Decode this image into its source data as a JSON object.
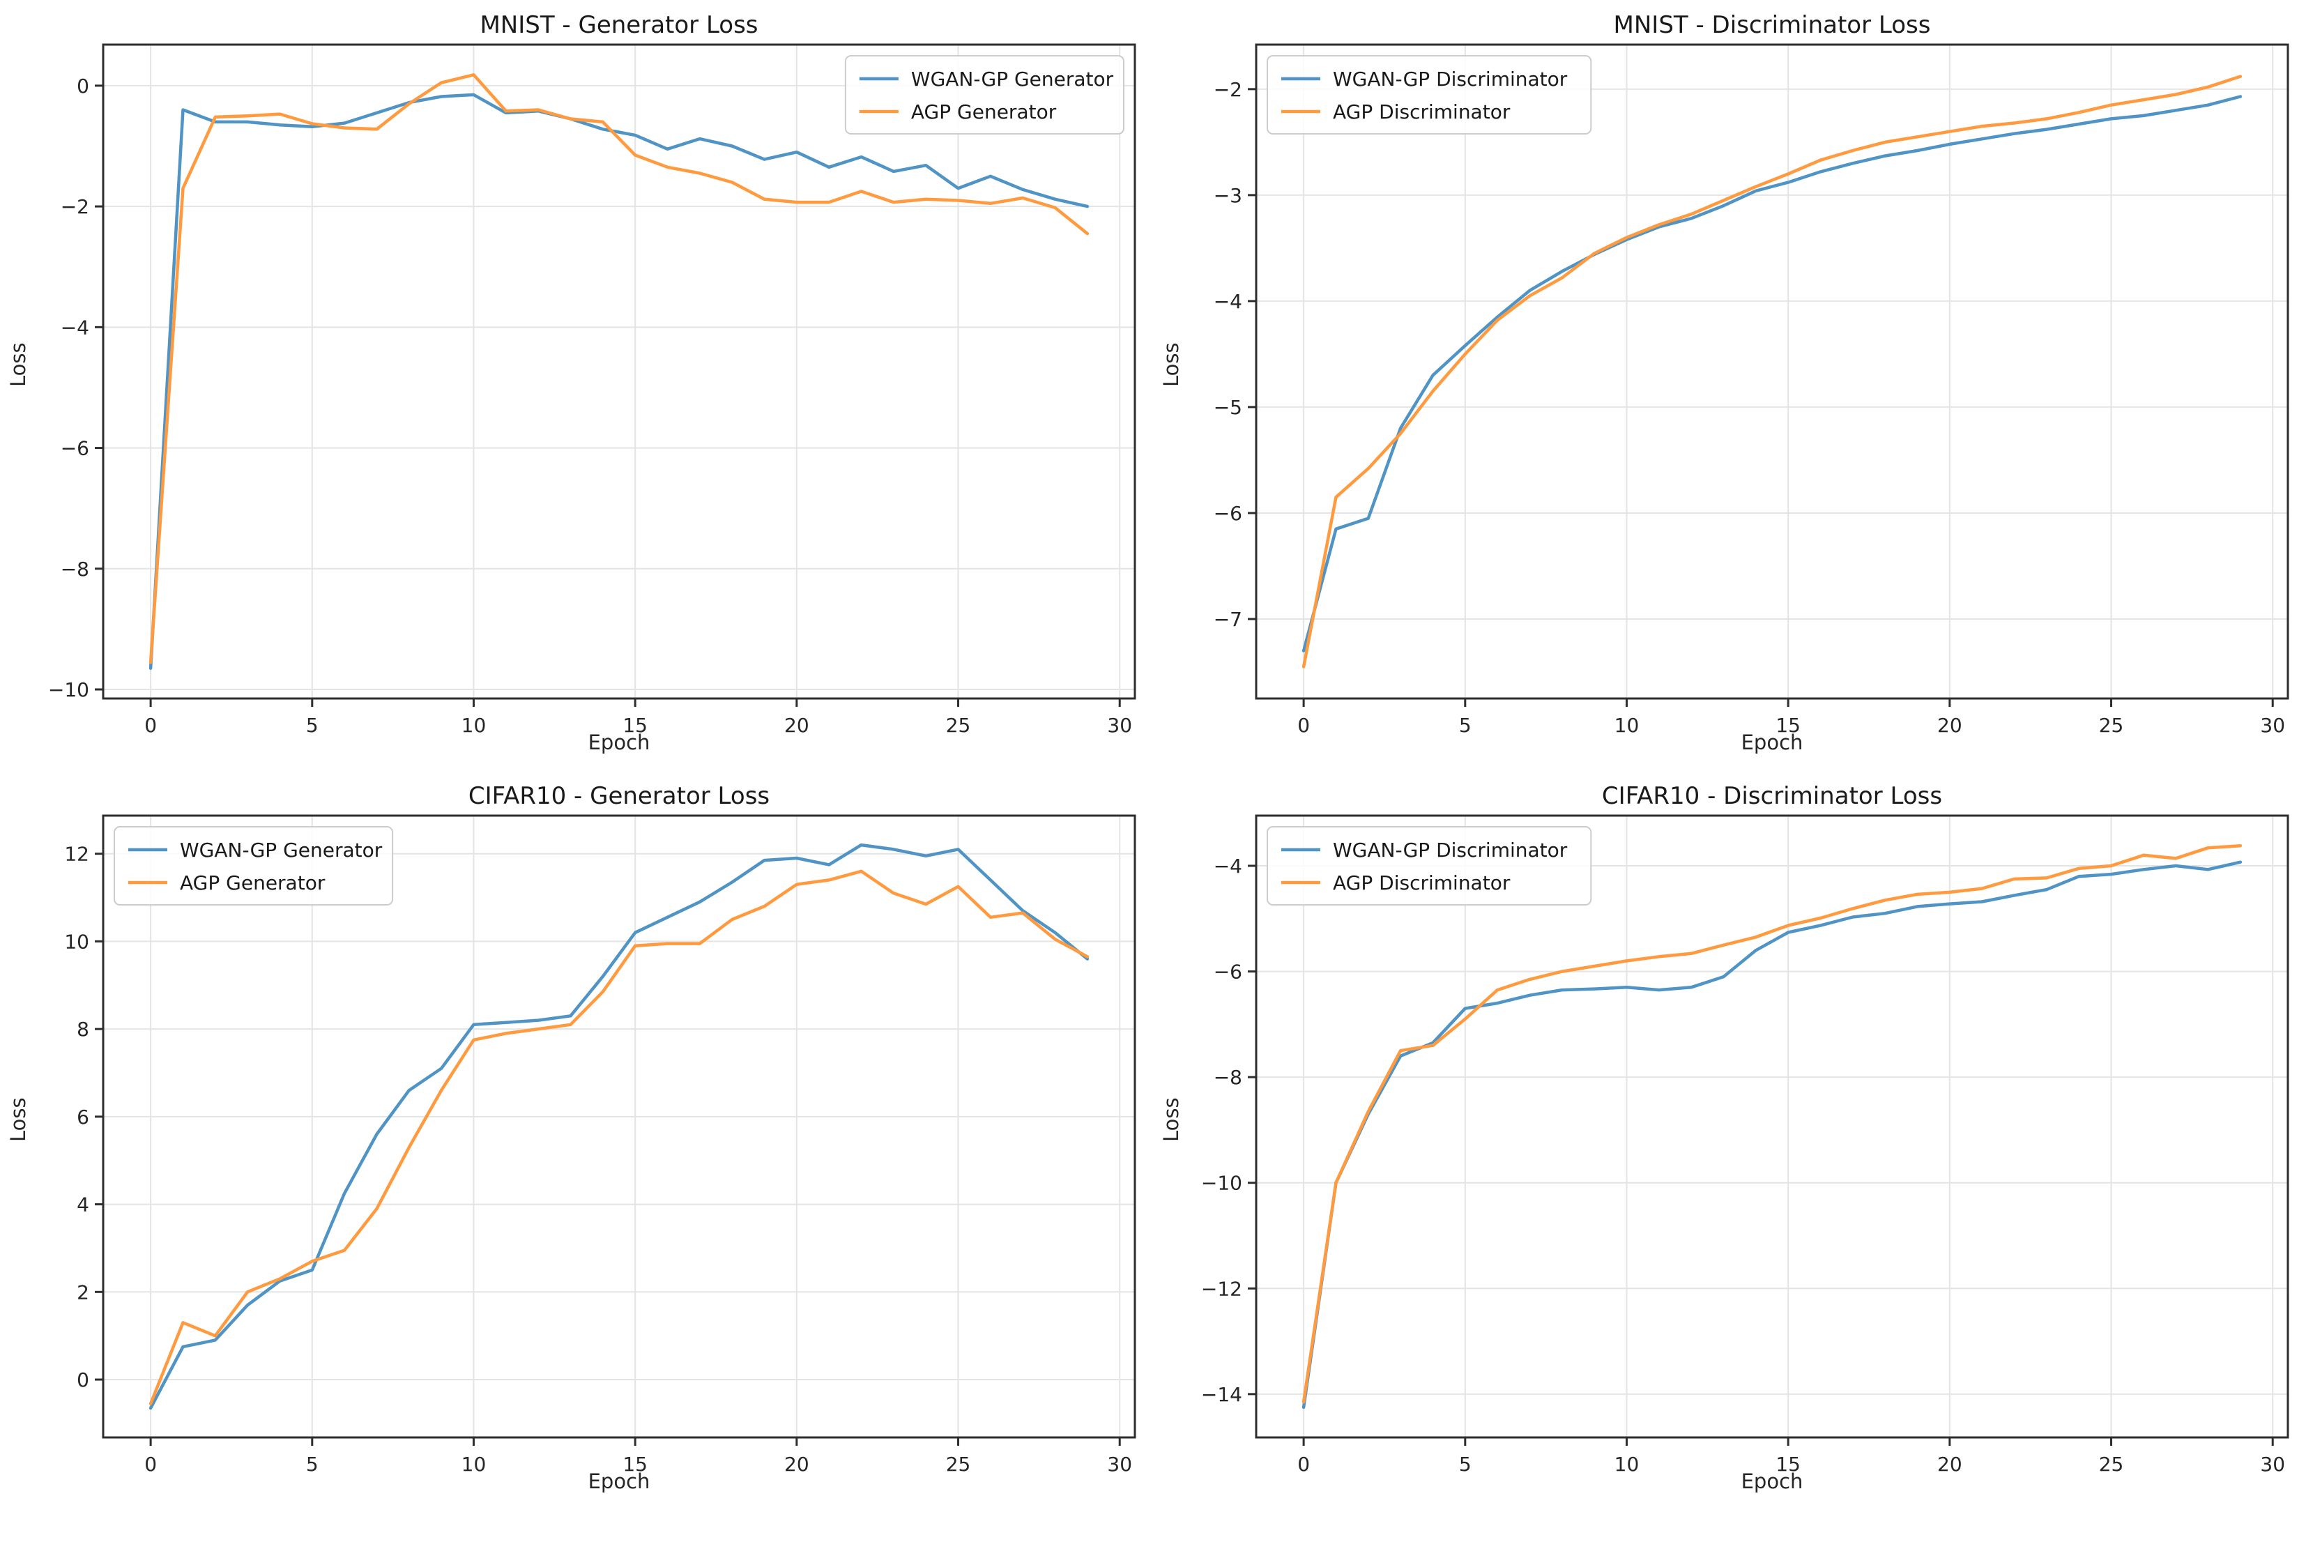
{
  "page": {
    "background": "#ffffff",
    "grid_layout": "2x2"
  },
  "colors": {
    "wgan_gp": "#4f94c4",
    "agp": "#ff9a3e",
    "grid": "#e4e4e4",
    "spine": "#2e2e2e",
    "text": "#262626"
  },
  "chart_data": [
    {
      "type": "line",
      "title": "MNIST - Generator Loss",
      "xlabel": "Epoch",
      "ylabel": "Loss",
      "legend_position": "upper-right",
      "grid": true,
      "xlim": [
        -1.47,
        30.47
      ],
      "ylim": [
        -10.15,
        0.68
      ],
      "xticks": [
        0,
        5,
        10,
        15,
        20,
        25,
        30
      ],
      "yticks": [
        0,
        -2,
        -4,
        -6,
        -8,
        -10
      ],
      "x": [
        0,
        1,
        2,
        3,
        4,
        5,
        6,
        7,
        8,
        9,
        10,
        11,
        12,
        13,
        14,
        15,
        16,
        17,
        18,
        19,
        20,
        21,
        22,
        23,
        24,
        25,
        26,
        27,
        28,
        29
      ],
      "series": [
        {
          "name": "WGAN-GP Generator",
          "color": "#4f94c4",
          "values": [
            -9.65,
            -0.4,
            -0.6,
            -0.6,
            -0.65,
            -0.68,
            -0.62,
            -0.45,
            -0.28,
            -0.18,
            -0.15,
            -0.45,
            -0.42,
            -0.55,
            -0.72,
            -0.82,
            -1.05,
            -0.88,
            -1.0,
            -1.22,
            -1.1,
            -1.35,
            -1.18,
            -1.42,
            -1.32,
            -1.7,
            -1.5,
            -1.72,
            -1.88,
            -2.0
          ]
        },
        {
          "name": "AGP Generator",
          "color": "#ff9a3e",
          "values": [
            -9.55,
            -1.7,
            -0.52,
            -0.5,
            -0.47,
            -0.63,
            -0.7,
            -0.72,
            -0.3,
            0.05,
            0.18,
            -0.42,
            -0.4,
            -0.55,
            -0.6,
            -1.15,
            -1.35,
            -1.45,
            -1.6,
            -1.88,
            -1.93,
            -1.93,
            -1.75,
            -1.93,
            -1.88,
            -1.9,
            -1.95,
            -1.86,
            -2.02,
            -2.45
          ]
        }
      ]
    },
    {
      "type": "line",
      "title": "MNIST - Discriminator Loss",
      "xlabel": "Epoch",
      "ylabel": "Loss",
      "legend_position": "upper-left",
      "grid": true,
      "xlim": [
        -1.47,
        30.47
      ],
      "ylim": [
        -7.75,
        -1.58
      ],
      "xticks": [
        0,
        5,
        10,
        15,
        20,
        25,
        30
      ],
      "yticks": [
        -2,
        -3,
        -4,
        -5,
        -6,
        -7
      ],
      "x": [
        0,
        1,
        2,
        3,
        4,
        5,
        6,
        7,
        8,
        9,
        10,
        11,
        12,
        13,
        14,
        15,
        16,
        17,
        18,
        19,
        20,
        21,
        22,
        23,
        24,
        25,
        26,
        27,
        28,
        29
      ],
      "series": [
        {
          "name": "WGAN-GP Discriminator",
          "color": "#4f94c4",
          "values": [
            -7.3,
            -6.15,
            -6.05,
            -5.2,
            -4.7,
            -4.42,
            -4.15,
            -3.9,
            -3.72,
            -3.56,
            -3.42,
            -3.3,
            -3.22,
            -3.1,
            -2.96,
            -2.88,
            -2.78,
            -2.7,
            -2.63,
            -2.58,
            -2.52,
            -2.47,
            -2.42,
            -2.38,
            -2.33,
            -2.28,
            -2.25,
            -2.2,
            -2.15,
            -2.07
          ]
        },
        {
          "name": "AGP Discriminator",
          "color": "#ff9a3e",
          "values": [
            -7.45,
            -5.85,
            -5.58,
            -5.25,
            -4.85,
            -4.5,
            -4.18,
            -3.95,
            -3.78,
            -3.55,
            -3.4,
            -3.28,
            -3.18,
            -3.05,
            -2.92,
            -2.8,
            -2.67,
            -2.58,
            -2.5,
            -2.45,
            -2.4,
            -2.35,
            -2.32,
            -2.28,
            -2.22,
            -2.15,
            -2.1,
            -2.05,
            -1.98,
            -1.88
          ]
        }
      ]
    },
    {
      "type": "line",
      "title": "CIFAR10 - Generator Loss",
      "xlabel": "Epoch",
      "ylabel": "Loss",
      "legend_position": "upper-left",
      "grid": true,
      "xlim": [
        -1.47,
        30.47
      ],
      "ylim": [
        -1.32,
        12.87
      ],
      "xticks": [
        0,
        5,
        10,
        15,
        20,
        25,
        30
      ],
      "yticks": [
        0,
        2,
        4,
        6,
        8,
        10,
        12
      ],
      "x": [
        0,
        1,
        2,
        3,
        4,
        5,
        6,
        7,
        8,
        9,
        10,
        11,
        12,
        13,
        14,
        15,
        16,
        17,
        18,
        19,
        20,
        21,
        22,
        23,
        24,
        25,
        26,
        27,
        28,
        29
      ],
      "series": [
        {
          "name": "WGAN-GP Generator",
          "color": "#4f94c4",
          "values": [
            -0.65,
            0.75,
            0.9,
            1.7,
            2.25,
            2.5,
            4.25,
            5.6,
            6.6,
            7.1,
            8.1,
            8.15,
            8.2,
            8.3,
            9.2,
            10.2,
            10.55,
            10.9,
            11.35,
            11.85,
            11.9,
            11.75,
            12.2,
            12.1,
            11.95,
            12.1,
            11.4,
            10.7,
            10.2,
            9.6
          ]
        },
        {
          "name": "AGP Generator",
          "color": "#ff9a3e",
          "values": [
            -0.55,
            1.3,
            1.0,
            2.0,
            2.3,
            2.7,
            2.95,
            3.9,
            5.3,
            6.6,
            7.75,
            7.9,
            8.0,
            8.1,
            8.85,
            9.9,
            9.95,
            9.95,
            10.5,
            10.8,
            11.3,
            11.4,
            11.6,
            11.1,
            10.85,
            11.25,
            10.55,
            10.65,
            10.05,
            9.65
          ]
        }
      ]
    },
    {
      "type": "line",
      "title": "CIFAR10 - Discriminator Loss",
      "xlabel": "Epoch",
      "ylabel": "Loss",
      "legend_position": "upper-left",
      "grid": true,
      "xlim": [
        -1.47,
        30.47
      ],
      "ylim": [
        -14.82,
        -3.05
      ],
      "xticks": [
        0,
        5,
        10,
        15,
        20,
        25,
        30
      ],
      "yticks": [
        -4,
        -6,
        -8,
        -10,
        -12,
        -14
      ],
      "x": [
        0,
        1,
        2,
        3,
        4,
        5,
        6,
        7,
        8,
        9,
        10,
        11,
        12,
        13,
        14,
        15,
        16,
        17,
        18,
        19,
        20,
        21,
        22,
        23,
        24,
        25,
        26,
        27,
        28,
        29
      ],
      "series": [
        {
          "name": "WGAN-GP Discriminator",
          "color": "#4f94c4",
          "values": [
            -14.25,
            -10.0,
            -8.7,
            -7.6,
            -7.35,
            -6.7,
            -6.6,
            -6.45,
            -6.35,
            -6.33,
            -6.3,
            -6.35,
            -6.3,
            -6.1,
            -5.6,
            -5.26,
            -5.13,
            -4.97,
            -4.9,
            -4.77,
            -4.72,
            -4.68,
            -4.56,
            -4.45,
            -4.2,
            -4.16,
            -4.07,
            -4.0,
            -4.07,
            -3.93
          ]
        },
        {
          "name": "AGP Discriminator",
          "color": "#ff9a3e",
          "values": [
            -14.15,
            -10.0,
            -8.65,
            -7.5,
            -7.4,
            -6.9,
            -6.35,
            -6.15,
            -6.0,
            -5.9,
            -5.8,
            -5.72,
            -5.66,
            -5.5,
            -5.35,
            -5.13,
            -4.99,
            -4.81,
            -4.65,
            -4.54,
            -4.5,
            -4.43,
            -4.25,
            -4.23,
            -4.05,
            -4.0,
            -3.8,
            -3.86,
            -3.66,
            -3.62
          ]
        }
      ]
    }
  ]
}
